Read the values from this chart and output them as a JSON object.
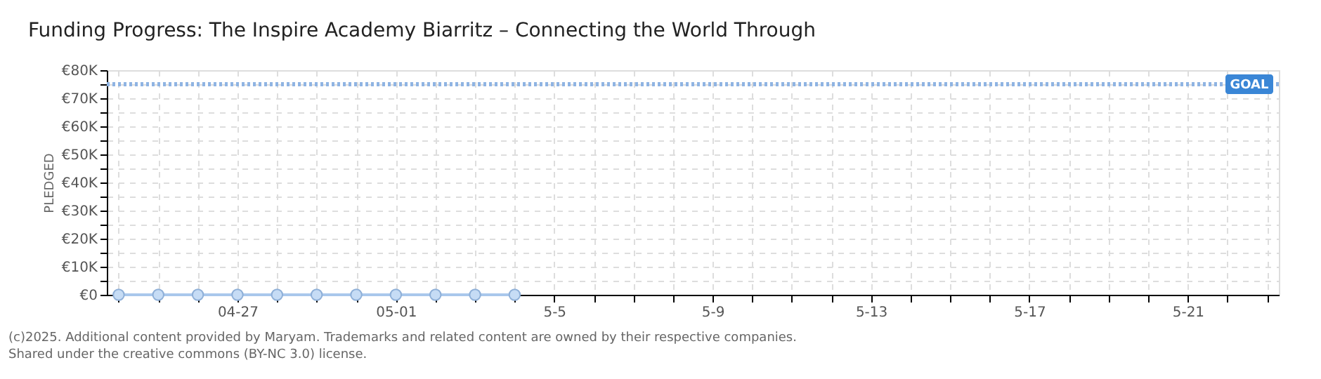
{
  "chart_data": {
    "type": "line",
    "title": "Funding Progress: The Inspire Academy Biarritz – Connecting the World Through",
    "ylabel": "PLEDGED",
    "categories": [
      null,
      null,
      null,
      "04-27",
      null,
      null,
      null,
      "05-01",
      null,
      null,
      null,
      "5-5",
      null,
      null,
      null,
      "5-9",
      null,
      null,
      null,
      "5-13",
      null,
      null,
      null,
      "5-17",
      null,
      null,
      null,
      "5-21",
      null,
      null
    ],
    "series": [
      {
        "color": "#a9c8ec",
        "values": [
          0,
          0,
          0,
          0,
          0,
          0,
          0,
          0,
          0,
          0,
          0,
          null,
          null,
          null,
          null,
          null,
          null,
          null,
          null,
          null,
          null,
          null,
          null,
          null,
          null,
          null,
          null,
          null,
          null,
          null
        ]
      }
    ],
    "ylim": [
      0,
      80000
    ],
    "yticks": [
      {
        "value": 0,
        "label": "€0"
      },
      {
        "value": 5000,
        "label": null
      },
      {
        "value": 10000,
        "label": "€10K"
      },
      {
        "value": 15000,
        "label": null
      },
      {
        "value": 20000,
        "label": "€20K"
      },
      {
        "value": 25000,
        "label": null
      },
      {
        "value": 30000,
        "label": "€30K"
      },
      {
        "value": 35000,
        "label": null
      },
      {
        "value": 40000,
        "label": "€40K"
      },
      {
        "value": 45000,
        "label": null
      },
      {
        "value": 50000,
        "label": "€50K"
      },
      {
        "value": 55000,
        "label": null
      },
      {
        "value": 60000,
        "label": "€60K"
      },
      {
        "value": 65000,
        "label": null
      },
      {
        "value": 70000,
        "label": "€70K"
      },
      {
        "value": 75000,
        "label": null
      },
      {
        "value": 80000,
        "label": "€80K"
      }
    ],
    "grid": true,
    "marker": "circle",
    "line_style": "solid",
    "ref_lines": [
      {
        "axis": "y",
        "value": 75000,
        "label": "GOAL",
        "color": "#8fb4e3",
        "line_style": "dotted"
      }
    ],
    "annotations": [
      "(c)2025. Additional content provided by Maryam. Trademarks and related content are owned by their respective companies.",
      "Shared under the creative commons (BY-NC 3.0) license."
    ]
  }
}
